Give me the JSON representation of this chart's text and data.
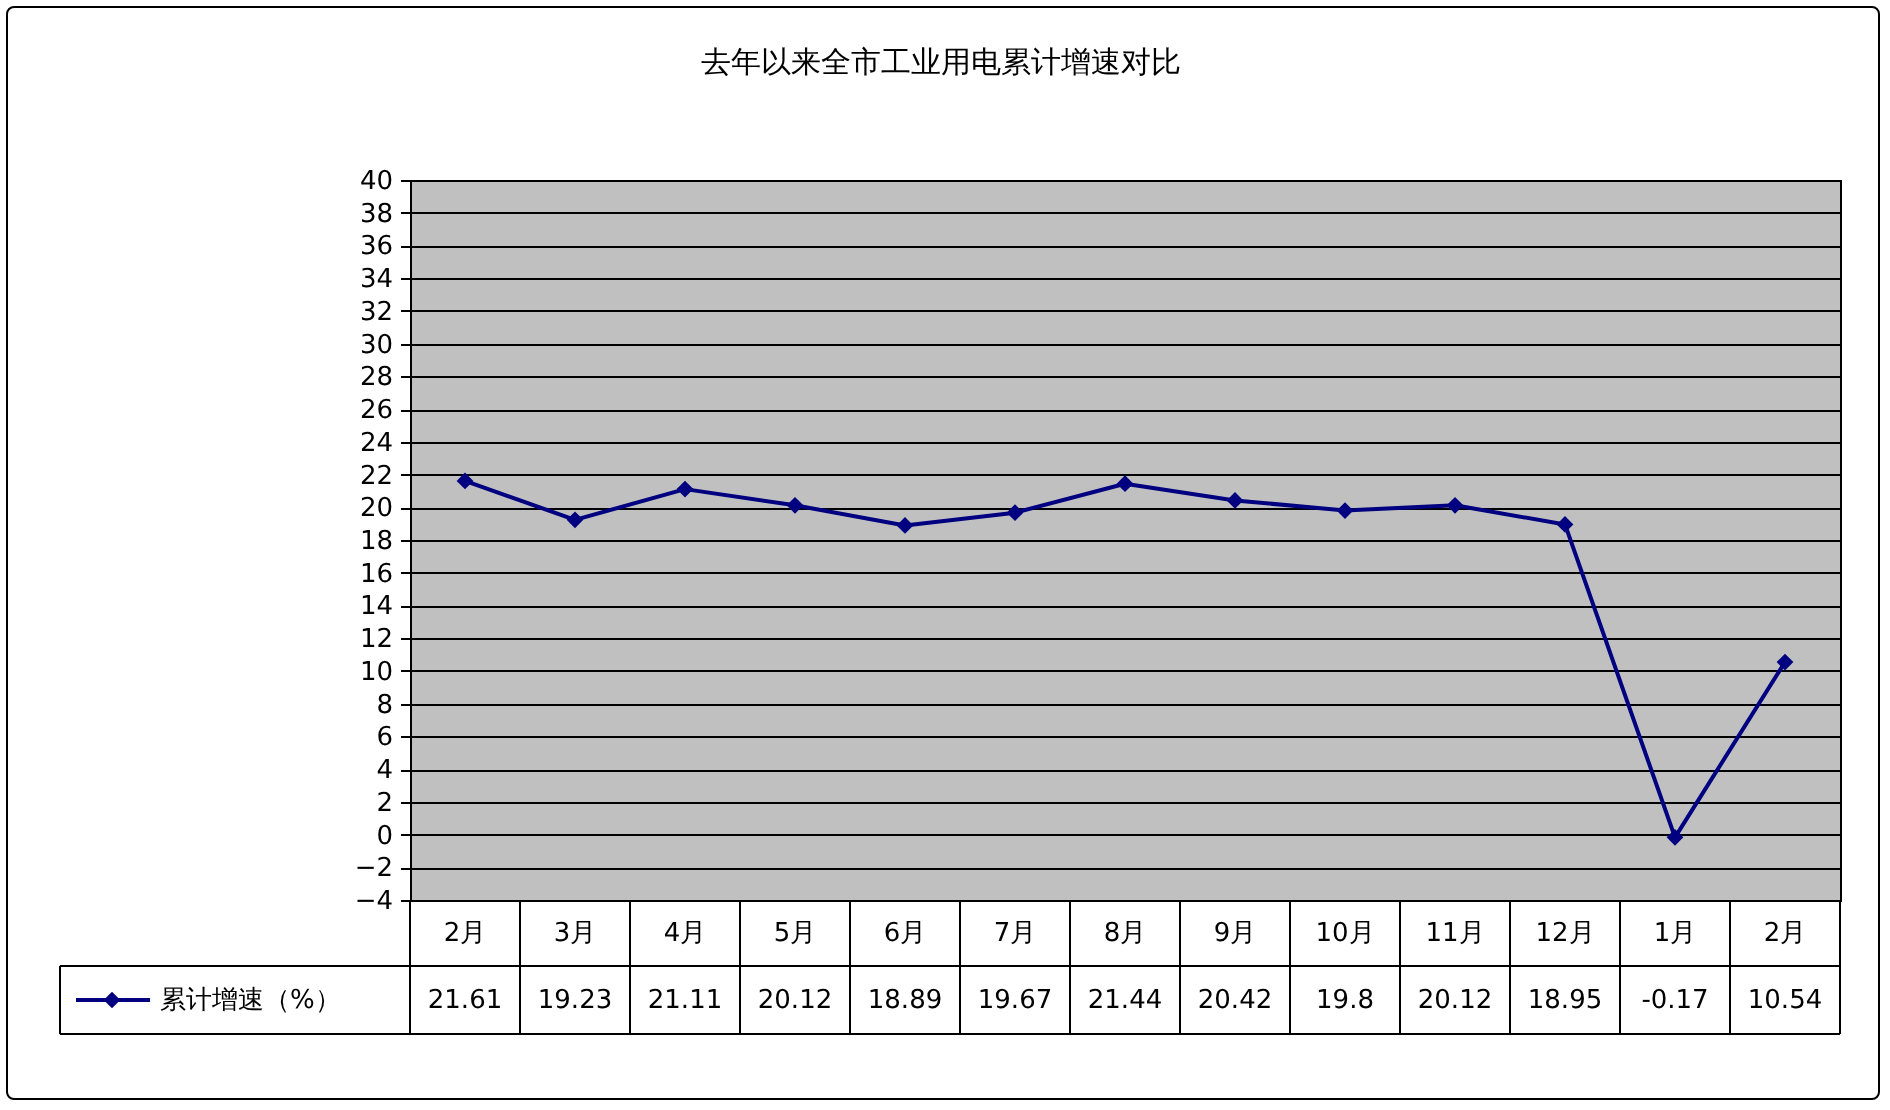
{
  "chart_data": {
    "type": "line",
    "title": "去年以来全市工业用电累计增速对比",
    "categories": [
      "2月",
      "3月",
      "4月",
      "5月",
      "6月",
      "7月",
      "8月",
      "9月",
      "10月",
      "11月",
      "12月",
      "1月",
      "2月"
    ],
    "series": [
      {
        "name": "累计增速（%）",
        "color": "#000080",
        "values": [
          21.61,
          19.23,
          21.11,
          20.12,
          18.89,
          19.67,
          21.44,
          20.42,
          19.8,
          20.12,
          18.95,
          -0.17,
          10.54
        ]
      }
    ],
    "ylim": [
      -4,
      40
    ],
    "yticks": [
      -4,
      -2,
      0,
      2,
      4,
      6,
      8,
      10,
      12,
      14,
      16,
      18,
      20,
      22,
      24,
      26,
      28,
      30,
      32,
      34,
      36,
      38,
      40
    ],
    "grid": "y",
    "legend": "bottom",
    "marker": "diamond",
    "data_labels": true
  }
}
